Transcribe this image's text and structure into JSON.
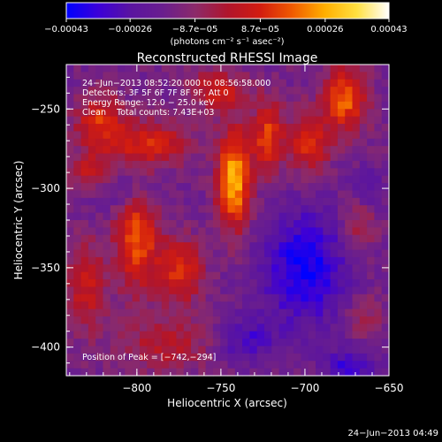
{
  "chart_data": {
    "type": "heatmap",
    "title": "Reconstructed RHESSI Image",
    "xlabel": "Heliocentric X (arcsec)",
    "ylabel": "Heliocentric Y (arcsec)",
    "x_range": [
      -842,
      -650
    ],
    "y_range": [
      -418,
      -222
    ],
    "x_ticks": [
      {
        "value": -800,
        "label": "−800"
      },
      {
        "value": -750,
        "label": "−750"
      },
      {
        "value": -700,
        "label": "−700"
      },
      {
        "value": -650,
        "label": "−650"
      }
    ],
    "y_ticks": [
      {
        "value": -250,
        "label": "−250"
      },
      {
        "value": -300,
        "label": "−300"
      },
      {
        "value": -350,
        "label": "−350"
      },
      {
        "value": -400,
        "label": "−400"
      }
    ],
    "colorbar": {
      "min": -0.00043,
      "max": 0.00043,
      "ticks": [
        {
          "value": -0.00043,
          "label": "−0.00043"
        },
        {
          "value": -0.00026,
          "label": "−0.00026"
        },
        {
          "value": -8.7e-05,
          "label": "−8.7e−05"
        },
        {
          "value": 8.7e-05,
          "label": "8.7e−05"
        },
        {
          "value": 0.00026,
          "label": "0.00026"
        },
        {
          "value": 0.00043,
          "label": "0.00043"
        }
      ],
      "unit": "(photons cm⁻² s⁻¹ asec⁻²)"
    },
    "annotation_lines": [
      "24−Jun−2013 08:52:20.000 to 08:56:58.000",
      "Detectors: 3F 5F 6F 7F 8F 9F, Att 0",
      "Energy Range: 12.0 − 25.0 keV",
      "Clean    Total counts: 7.43E+03"
    ],
    "peak_label": "Position of Peak = [−742,−294]",
    "peak": {
      "x": -742,
      "y": -294
    },
    "sources": [
      {
        "x": -742,
        "y": -294,
        "sx": 7,
        "sy": 22,
        "amp": 0.00043
      },
      {
        "x": -722,
        "y": -268,
        "sx": 6,
        "sy": 16,
        "amp": 0.00028
      },
      {
        "x": -698,
        "y": -272,
        "sx": 9,
        "sy": 14,
        "amp": 0.00024
      },
      {
        "x": -676,
        "y": -244,
        "sx": 9,
        "sy": 14,
        "amp": 0.00032
      },
      {
        "x": -752,
        "y": -238,
        "sx": 12,
        "sy": 8,
        "amp": 0.00022
      },
      {
        "x": -792,
        "y": -272,
        "sx": 16,
        "sy": 10,
        "amp": 0.00024
      },
      {
        "x": -822,
        "y": -258,
        "sx": 10,
        "sy": 12,
        "amp": 0.00026
      },
      {
        "x": -828,
        "y": -292,
        "sx": 10,
        "sy": 9,
        "amp": 0.0002
      },
      {
        "x": -800,
        "y": -332,
        "sx": 9,
        "sy": 22,
        "amp": 0.00032
      },
      {
        "x": -774,
        "y": -352,
        "sx": 9,
        "sy": 14,
        "amp": 0.00026
      },
      {
        "x": -830,
        "y": -362,
        "sx": 8,
        "sy": 20,
        "amp": 0.0002
      },
      {
        "x": -782,
        "y": -398,
        "sx": 18,
        "sy": 12,
        "amp": 0.00016
      },
      {
        "x": -668,
        "y": -322,
        "sx": 8,
        "sy": 12,
        "amp": 0.00014
      },
      {
        "x": -665,
        "y": -380,
        "sx": 8,
        "sy": 10,
        "amp": 0.00011
      },
      {
        "x": -812,
        "y": -302,
        "sx": 20,
        "sy": 8,
        "amp": -0.00012
      },
      {
        "x": -700,
        "y": -350,
        "sx": 18,
        "sy": 26,
        "amp": -0.00026
      },
      {
        "x": -735,
        "y": -395,
        "sx": 12,
        "sy": 10,
        "amp": -0.00016
      },
      {
        "x": -672,
        "y": -412,
        "sx": 10,
        "sy": 8,
        "amp": -0.0002
      },
      {
        "x": -662,
        "y": -300,
        "sx": 8,
        "sy": 10,
        "amp": -0.0001
      }
    ]
  },
  "timestamp": "24−Jun−2013 04:49",
  "colors": {
    "background": "#000000",
    "foreground": "#ffffff",
    "colormap": [
      "#0000ff",
      "#3c00d8",
      "#5a14a0",
      "#6a1e8e",
      "#8c2a6a",
      "#b0152c",
      "#d21c10",
      "#f05a00",
      "#ffae00",
      "#ffe040",
      "#ffffff"
    ]
  }
}
